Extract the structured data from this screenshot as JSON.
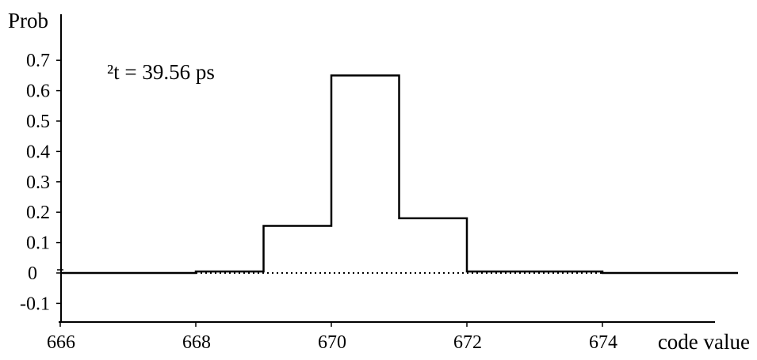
{
  "chart_data": {
    "type": "line",
    "step": "post",
    "title": "",
    "xlabel": "code value",
    "ylabel": "Prob",
    "annotation": "²t = 39.56 ps",
    "xlim": [
      666,
      676
    ],
    "ylim": [
      -0.15,
      0.75
    ],
    "x_ticks": [
      666,
      668,
      670,
      672,
      674
    ],
    "x_tick_labels": [
      "666",
      "668",
      "670",
      "672",
      "674"
    ],
    "y_ticks": [
      0.7,
      0.6,
      0.5,
      0.4,
      0.3,
      0.2,
      0.1,
      0,
      -0.1
    ],
    "y_tick_labels": [
      "0.7",
      "0.6",
      "0.5",
      "0.4",
      "0.3",
      "0.2",
      "0.1",
      "0",
      "-0.1"
    ],
    "series": [
      {
        "style": "solid",
        "color": "#000000",
        "x": [
          666,
          668,
          669,
          670,
          671,
          672,
          674,
          676
        ],
        "y": [
          0,
          0.005,
          0.155,
          0.65,
          0.18,
          0.005,
          0,
          0
        ]
      },
      {
        "style": "dotted",
        "color": "#000000",
        "x": [
          668,
          674
        ],
        "y": [
          0,
          0
        ]
      }
    ],
    "grid": false,
    "legend": "none"
  }
}
